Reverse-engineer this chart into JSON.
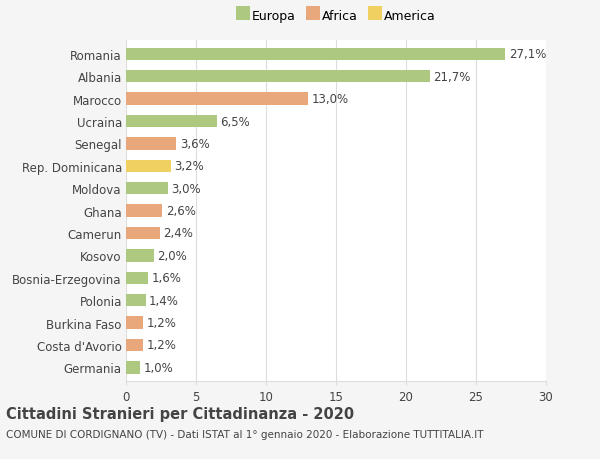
{
  "categories": [
    "Romania",
    "Albania",
    "Marocco",
    "Ucraina",
    "Senegal",
    "Rep. Dominicana",
    "Moldova",
    "Ghana",
    "Camerun",
    "Kosovo",
    "Bosnia-Erzegovina",
    "Polonia",
    "Burkina Faso",
    "Costa d'Avorio",
    "Germania"
  ],
  "values": [
    27.1,
    21.7,
    13.0,
    6.5,
    3.6,
    3.2,
    3.0,
    2.6,
    2.4,
    2.0,
    1.6,
    1.4,
    1.2,
    1.2,
    1.0
  ],
  "labels": [
    "27,1%",
    "21,7%",
    "13,0%",
    "6,5%",
    "3,6%",
    "3,2%",
    "3,0%",
    "2,6%",
    "2,4%",
    "2,0%",
    "1,6%",
    "1,4%",
    "1,2%",
    "1,2%",
    "1,0%"
  ],
  "continents": [
    "Europa",
    "Europa",
    "Africa",
    "Europa",
    "Africa",
    "America",
    "Europa",
    "Africa",
    "Africa",
    "Europa",
    "Europa",
    "Europa",
    "Africa",
    "Africa",
    "Europa"
  ],
  "continent_colors": {
    "Europa": "#adc97f",
    "Africa": "#e8a87c",
    "America": "#f0d060"
  },
  "xlim": [
    0,
    30
  ],
  "xticks": [
    0,
    5,
    10,
    15,
    20,
    25,
    30
  ],
  "title": "Cittadini Stranieri per Cittadinanza - 2020",
  "subtitle": "COMUNE DI CORDIGNANO (TV) - Dati ISTAT al 1° gennaio 2020 - Elaborazione TUTTITALIA.IT",
  "background_color": "#f5f5f5",
  "plot_bg_color": "#ffffff",
  "grid_color": "#dddddd",
  "text_color": "#444444",
  "bar_height": 0.55,
  "label_fontsize": 8.5,
  "ytick_fontsize": 8.5,
  "xtick_fontsize": 8.5,
  "title_fontsize": 10.5,
  "subtitle_fontsize": 7.5,
  "legend_fontsize": 9
}
